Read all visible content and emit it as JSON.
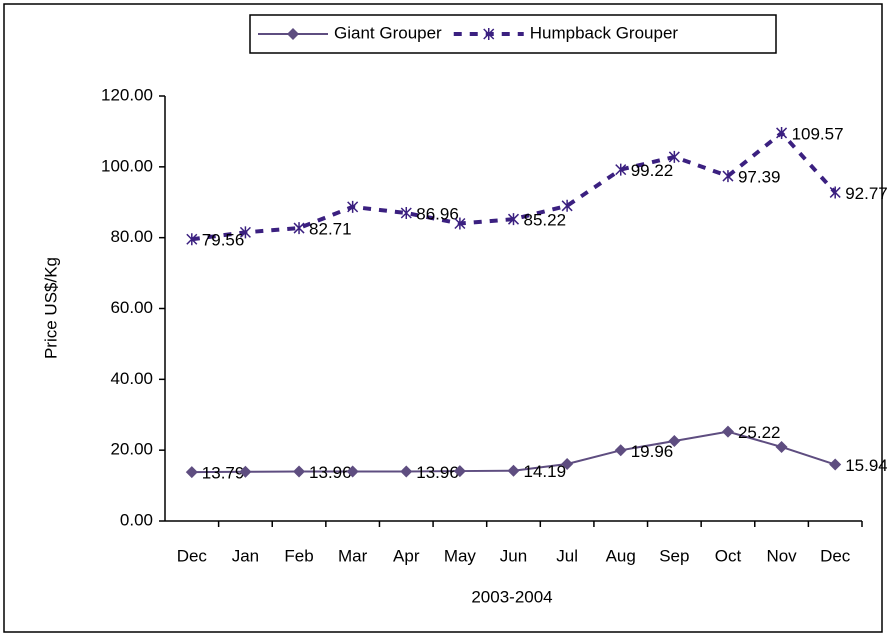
{
  "chart_data": {
    "type": "line",
    "xlabel": "2003-2004",
    "ylabel": "Price US$/Kg",
    "categories": [
      "Dec",
      "Jan",
      "Feb",
      "Mar",
      "Apr",
      "May",
      "Jun",
      "Jul",
      "Aug",
      "Sep",
      "Oct",
      "Nov",
      "Dec"
    ],
    "series": [
      {
        "name": "Giant Grouper",
        "color": "#5e4d80",
        "dash": false,
        "marker": "diamond",
        "values": [
          13.79,
          13.9,
          13.96,
          13.96,
          13.96,
          14.1,
          14.19,
          16.1,
          19.96,
          22.6,
          25.22,
          20.9,
          15.94
        ],
        "value_labels": [
          "13.79",
          null,
          "13.96",
          null,
          "13.96",
          null,
          "14.19",
          null,
          "19.96",
          null,
          "25.22",
          null,
          "15.94"
        ]
      },
      {
        "name": "Humpback Grouper",
        "color": "#3b2080",
        "dash": true,
        "marker": "star",
        "values": [
          79.56,
          81.5,
          82.71,
          88.7,
          86.96,
          84.0,
          85.22,
          89.0,
          99.22,
          102.8,
          97.39,
          109.57,
          92.77
        ],
        "value_labels": [
          "79.56",
          null,
          "82.71",
          null,
          "86.96",
          null,
          "85.22",
          null,
          "99.22",
          null,
          "97.39",
          "109.57",
          "92.77"
        ]
      }
    ],
    "ylim": [
      0,
      120
    ],
    "yticks": [
      {
        "value": 0,
        "label": "0.00"
      },
      {
        "value": 20,
        "label": "20.00"
      },
      {
        "value": 40,
        "label": "40.00"
      },
      {
        "value": 60,
        "label": "60.00"
      },
      {
        "value": 80,
        "label": "80.00"
      },
      {
        "value": 100,
        "label": "100.00"
      },
      {
        "value": 120,
        "label": "120.00"
      }
    ],
    "legend": "top"
  }
}
